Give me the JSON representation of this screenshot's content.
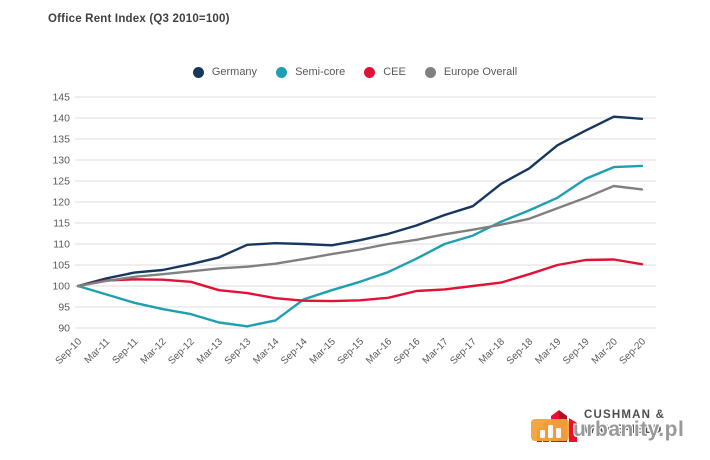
{
  "title": "Office Rent Index (Q3 2010=100)",
  "chart_data": {
    "type": "line",
    "title": "Office Rent Index (Q3 2010=100)",
    "x": [
      "Sep-10",
      "Mar-11",
      "Sep-11",
      "Mar-12",
      "Sep-12",
      "Mar-13",
      "Sep-13",
      "Mar-14",
      "Sep-14",
      "Mar-15",
      "Sep-15",
      "Mar-16",
      "Sep-16",
      "Mar-17",
      "Sep-17",
      "Mar-18",
      "Sep-18",
      "Mar-19",
      "Sep-19",
      "Mar-20",
      "Sep-20"
    ],
    "series": [
      {
        "name": "Germany",
        "color": "#17375e",
        "values": [
          100,
          101.8,
          103.2,
          103.8,
          105.2,
          106.8,
          109.8,
          110.2,
          110.0,
          109.7,
          110.9,
          112.4,
          114.4,
          116.9,
          119.0,
          124.3,
          128.0,
          133.5,
          137.0,
          140.3,
          139.8
        ]
      },
      {
        "name": "Semi-core",
        "color": "#1f9fb2",
        "values": [
          100,
          98.0,
          96.0,
          94.5,
          93.3,
          91.3,
          90.4,
          91.8,
          96.8,
          99.0,
          101.0,
          103.3,
          106.5,
          110.0,
          112.0,
          115.3,
          118.0,
          121.0,
          125.5,
          128.3,
          128.6
        ]
      },
      {
        "name": "CEE",
        "color": "#e11235",
        "values": [
          100,
          101.3,
          101.6,
          101.5,
          101.0,
          99.0,
          98.3,
          97.1,
          96.5,
          96.4,
          96.6,
          97.2,
          98.8,
          99.2,
          100.0,
          100.8,
          102.8,
          105.0,
          106.2,
          106.3,
          105.2
        ]
      },
      {
        "name": "Europe Overall",
        "color": "#808080",
        "values": [
          100,
          101.2,
          102.2,
          102.8,
          103.5,
          104.2,
          104.6,
          105.3,
          106.4,
          107.6,
          108.7,
          110.0,
          111.0,
          112.3,
          113.4,
          114.6,
          116.0,
          118.5,
          121.0,
          123.8,
          123.0
        ]
      }
    ],
    "yticks": [
      90,
      95,
      100,
      105,
      110,
      115,
      120,
      125,
      130,
      135,
      140,
      145
    ],
    "ylim": [
      90,
      145
    ],
    "xlabel": "",
    "ylabel": "",
    "grid": "horizontal",
    "legend_position": "top"
  },
  "branding": {
    "brand_top": "CUSHMAN &",
    "brand_bottom": "WAKEFIELD",
    "watermark": "urbanity.pl"
  }
}
